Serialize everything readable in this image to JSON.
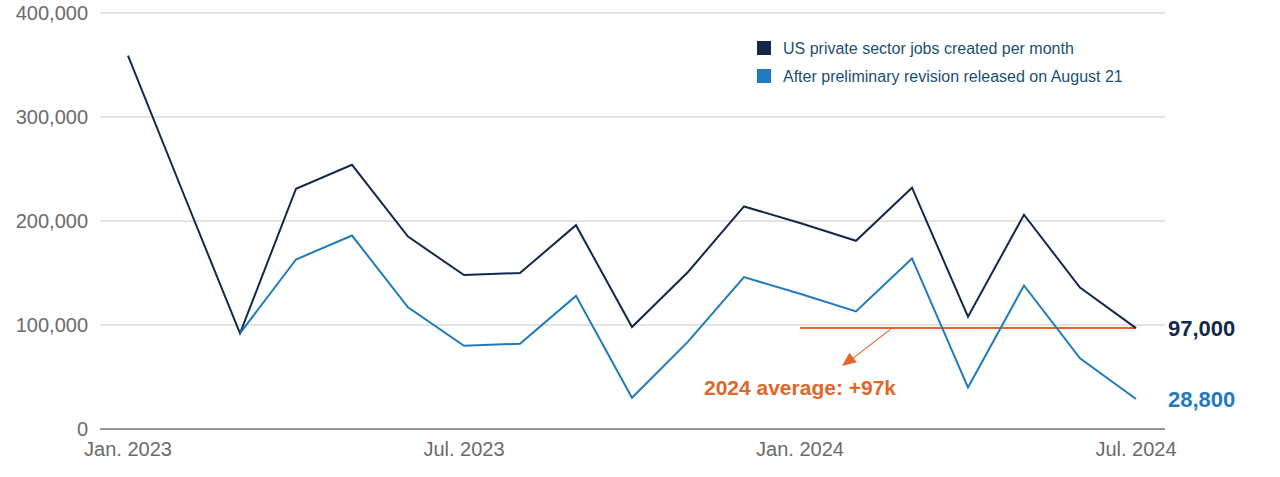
{
  "chart_data": {
    "type": "line",
    "categories": [
      "Jan. 2023",
      null,
      null,
      null,
      null,
      null,
      "Jul. 2023",
      null,
      null,
      null,
      null,
      null,
      "Jan. 2024",
      null,
      null,
      null,
      null,
      null,
      "Jul. 2024"
    ],
    "series": [
      {
        "name": "US private sector jobs created per month",
        "color": "#13294b",
        "values": [
          359000,
          225000,
          92000,
          231000,
          254000,
          185000,
          148000,
          150000,
          196000,
          98000,
          151000,
          214000,
          198000,
          181000,
          232000,
          108000,
          206000,
          136000,
          97000
        ],
        "value_labels": [
          null,
          null,
          null,
          null,
          null,
          null,
          null,
          null,
          null,
          null,
          null,
          null,
          null,
          null,
          null,
          null,
          null,
          null,
          "97,000"
        ]
      },
      {
        "name": "After preliminary revision released on August 21",
        "color": "#1f7bbd",
        "values": [
          null,
          null,
          92000,
          163000,
          186000,
          117000,
          80000,
          82000,
          128000,
          30000,
          84000,
          146000,
          130000,
          113000,
          164000,
          40000,
          138000,
          68000,
          28800
        ],
        "value_labels": [
          null,
          null,
          null,
          null,
          null,
          null,
          null,
          null,
          null,
          null,
          null,
          null,
          null,
          null,
          null,
          null,
          null,
          null,
          "28,800"
        ]
      }
    ],
    "ylim": [
      0,
      400000
    ],
    "yticks": [
      0,
      {
        "value": 100000,
        "label": "100,000"
      },
      {
        "value": 200000,
        "label": "200,000"
      },
      {
        "value": 300000,
        "label": "300,000"
      },
      {
        "value": 400000,
        "label": "400,000"
      }
    ],
    "grid": true,
    "legend": "top-right",
    "annotations": [
      {
        "text": "2024 average: +97k",
        "value": 97000,
        "start": "Jan. 2024",
        "end": "Jul. 2024",
        "color": "#e0662a"
      }
    ]
  }
}
